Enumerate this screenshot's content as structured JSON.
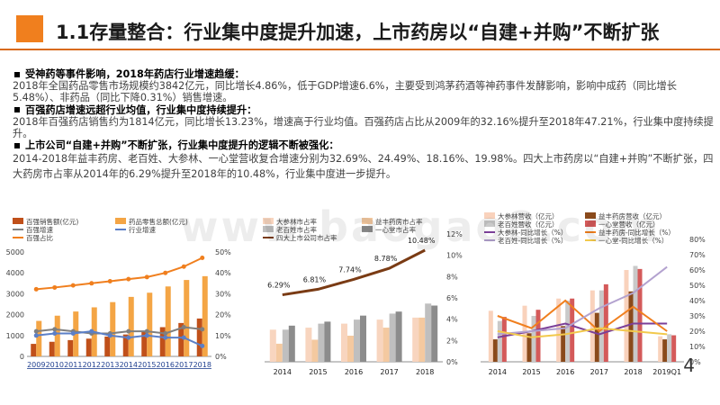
{
  "title": "1.1存量整合：行业集中度提升加速，上市药房以“自建+并购”不断扩张",
  "sections": [
    {
      "heading": "受神药等事件影响，2018年药店行业增速趋缓：",
      "body": "2018年全国药品零售市场规模约3842亿元，同比增长4.86%，低于GDP增速6.6%，主要受到鸿茅药酒等神药事件发酵影响，影响中成药（同比增长5.48%）、非药品（同比下降0.31%）销售增速。"
    },
    {
      "heading": "百强药店增速远超行业均值，行业集中度持续提升：",
      "body": "2018年百强药店销售约为1814亿元，同比增长13.23%，增速高于行业均值。百强药店占比从2009年的32.16%提升至2018年47.21%，行业集中度持续提升。"
    },
    {
      "heading": "上市公司“自建+并购”不断扩张，行业集中度提升的逻辑不断被强化：",
      "body": "2014-2018年益丰药房、老百姓、大参林、一心堂营收复合增速分别为32.69%、24.49%、18.16%、19.98%。四大上市药房以“自建+并购”不断扩张，四大药房市占率从2014年的6.29%提升至2018年的10.48%，行业集中度进一步提升。"
    }
  ],
  "watermark": "www.baogao8.com",
  "page_number": "4",
  "chart_data": [
    {
      "type": "bar",
      "categories": [
        "2009",
        "2010",
        "2011",
        "2012",
        "2013",
        "2014",
        "2015",
        "2016",
        "2017",
        "2018"
      ],
      "legend": [
        "百强销售额(亿元)",
        "药品零售总额(亿元)",
        "百强增速",
        "行业增速",
        "百强占比"
      ],
      "series": [
        {
          "name": "百强销售额(亿元)",
          "kind": "bar",
          "axis": "left",
          "color": "#c0501a",
          "values": [
            600,
            700,
            780,
            850,
            950,
            1050,
            1200,
            1400,
            1600,
            1814
          ]
        },
        {
          "name": "药品零售总额(亿元)",
          "kind": "bar",
          "axis": "left",
          "color": "#f4a545",
          "values": [
            1700,
            1950,
            2150,
            2350,
            2600,
            2850,
            3050,
            3350,
            3660,
            3842
          ]
        },
        {
          "name": "百强增速",
          "kind": "line",
          "axis": "right",
          "color": "#7f7f7f",
          "values": [
            12,
            13,
            12,
            11,
            11,
            12,
            12,
            11,
            14,
            13
          ]
        },
        {
          "name": "行业增速",
          "kind": "line",
          "axis": "right",
          "color": "#5b7fc7",
          "values": [
            10,
            11,
            11,
            12,
            10,
            9,
            10,
            9,
            9,
            5
          ]
        },
        {
          "name": "百强占比",
          "kind": "line",
          "axis": "right",
          "color": "#f07f1e",
          "values": [
            32.16,
            33,
            34,
            35,
            36,
            37,
            38,
            40,
            43,
            47.21
          ]
        }
      ],
      "ylim_left": [
        0,
        5000
      ],
      "yticks_left": [
        "0",
        "1000",
        "2000",
        "3000",
        "4000",
        "5000"
      ],
      "ylim_right": [
        0,
        50
      ],
      "yticks_right": [
        "0%",
        "10%",
        "20%",
        "30%",
        "40%",
        "50%"
      ]
    },
    {
      "type": "bar",
      "categories": [
        "2014",
        "2015",
        "2016",
        "2017",
        "2018"
      ],
      "legend": [
        "大参林市占率",
        "益丰药房市占率",
        "老百姓市占率",
        "一心堂市占率",
        "四大上市公司市占率"
      ],
      "series": [
        {
          "name": "大参林市占率",
          "kind": "bar",
          "color": "#f8d5bf",
          "values": [
            1.6,
            1.7,
            1.9,
            2.1,
            2.2
          ]
        },
        {
          "name": "益丰药房市占率",
          "kind": "bar",
          "color": "#f4c9a0",
          "values": [
            0.9,
            1.1,
            1.3,
            1.7,
            2.2
          ]
        },
        {
          "name": "老百姓市占率",
          "kind": "bar",
          "color": "#bfbfbf",
          "values": [
            1.6,
            1.9,
            2.1,
            2.4,
            2.9
          ]
        },
        {
          "name": "一心堂市占率",
          "kind": "bar",
          "color": "#8c8c8c",
          "values": [
            1.8,
            2.0,
            2.3,
            2.5,
            2.8
          ]
        },
        {
          "name": "四大上市公司市占率",
          "kind": "line",
          "color": "#7a3b14",
          "values": [
            6.29,
            6.81,
            7.74,
            8.78,
            10.48
          ]
        }
      ],
      "point_labels": [
        "6.29%",
        "6.81%",
        "7.74%",
        "8.78%",
        "10.48%"
      ],
      "ylim": [
        0,
        12
      ],
      "yticks": [
        "0%",
        "2%",
        "4%",
        "6%",
        "8%",
        "10%",
        "12%"
      ]
    },
    {
      "type": "bar",
      "categories": [
        "2014",
        "2015",
        "2016",
        "2017",
        "2018",
        "2019Q1"
      ],
      "legend": [
        "大参林营收（亿元）",
        "益丰药房营收（亿元）",
        "老百姓营收（亿元）",
        "一心堂营收（亿元）",
        "大参林-同比增长（%）",
        "益丰药房-同比增长（%）",
        "老百姓-同比增长（%）",
        "一心堂-同比增长（%）"
      ],
      "series": [
        {
          "name": "大参林营收（亿元）",
          "kind": "bar",
          "color": "#f9d2bc",
          "values": [
            50,
            55,
            62,
            70,
            90,
            25
          ]
        },
        {
          "name": "益丰药房营收（亿元）",
          "kind": "bar",
          "color": "#8a4a1b",
          "values": [
            22,
            28,
            35,
            48,
            69,
            22
          ]
        },
        {
          "name": "老百姓营收（亿元）",
          "kind": "bar",
          "color": "#c9c9c9",
          "values": [
            40,
            45,
            60,
            70,
            94,
            27
          ]
        },
        {
          "name": "一心堂营收（亿元）",
          "kind": "bar",
          "color": "#d45a5a",
          "values": [
            44,
            51,
            62,
            76,
            91,
            26
          ]
        },
        {
          "name": "大参林-同比增长（%）",
          "kind": "line",
          "color": "#7b3f98",
          "values": [
            16,
            20,
            25,
            18,
            25,
            25
          ]
        },
        {
          "name": "益丰药房-同比增长（%）",
          "kind": "line",
          "color": "#f07f1e",
          "values": [
            30,
            22,
            40,
            20,
            36,
            20
          ]
        },
        {
          "name": "老百姓-同比增长（%）",
          "kind": "line",
          "color": "#b3a2cf",
          "values": [
            18,
            20,
            22,
            35,
            45,
            62
          ]
        },
        {
          "name": "一心堂-同比增长（%）",
          "kind": "line",
          "color": "#f2c94c",
          "values": [
            20,
            16,
            18,
            22,
            20,
            18
          ]
        }
      ],
      "ylim_left": [
        0,
        120
      ],
      "ylim_right": [
        0,
        80
      ],
      "yticks_right": [
        "0%",
        "10%",
        "20%",
        "30%",
        "40%",
        "50%",
        "60%",
        "70%",
        "80%"
      ]
    }
  ]
}
